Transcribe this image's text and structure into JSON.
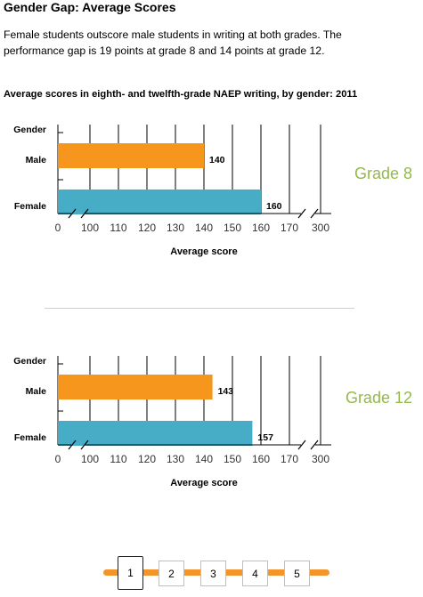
{
  "title": "Gender Gap: Average Scores",
  "description": "Female students outscore male students in writing at both grades. The performance gap is 19 points at grade 8 and 14 points at grade 12.",
  "chart_heading": "Average scores in eighth- and twelfth-grade NAEP writing, by gender: 2011",
  "colors": {
    "male": "#f7961d",
    "female": "#47adc7",
    "grade_label": "#94b947"
  },
  "chart_data": [
    {
      "type": "bar",
      "orientation": "horizontal",
      "label": "Grade 8",
      "category_header": "Gender",
      "categories": [
        "Male",
        "Female"
      ],
      "values": [
        140,
        160
      ],
      "xlabel": "Average score",
      "xticks": [
        0,
        100,
        110,
        120,
        130,
        140,
        150,
        160,
        170,
        300
      ],
      "axis_break": true,
      "grid": true
    },
    {
      "type": "bar",
      "orientation": "horizontal",
      "label": "Grade 12",
      "category_header": "Gender",
      "categories": [
        "Male",
        "Female"
      ],
      "values": [
        143,
        157
      ],
      "xlabel": "Average score",
      "xticks": [
        0,
        100,
        110,
        120,
        130,
        140,
        150,
        160,
        170,
        300
      ],
      "axis_break": true,
      "grid": true
    }
  ],
  "pager": {
    "pages": [
      "1",
      "2",
      "3",
      "4",
      "5"
    ],
    "current": "1"
  }
}
